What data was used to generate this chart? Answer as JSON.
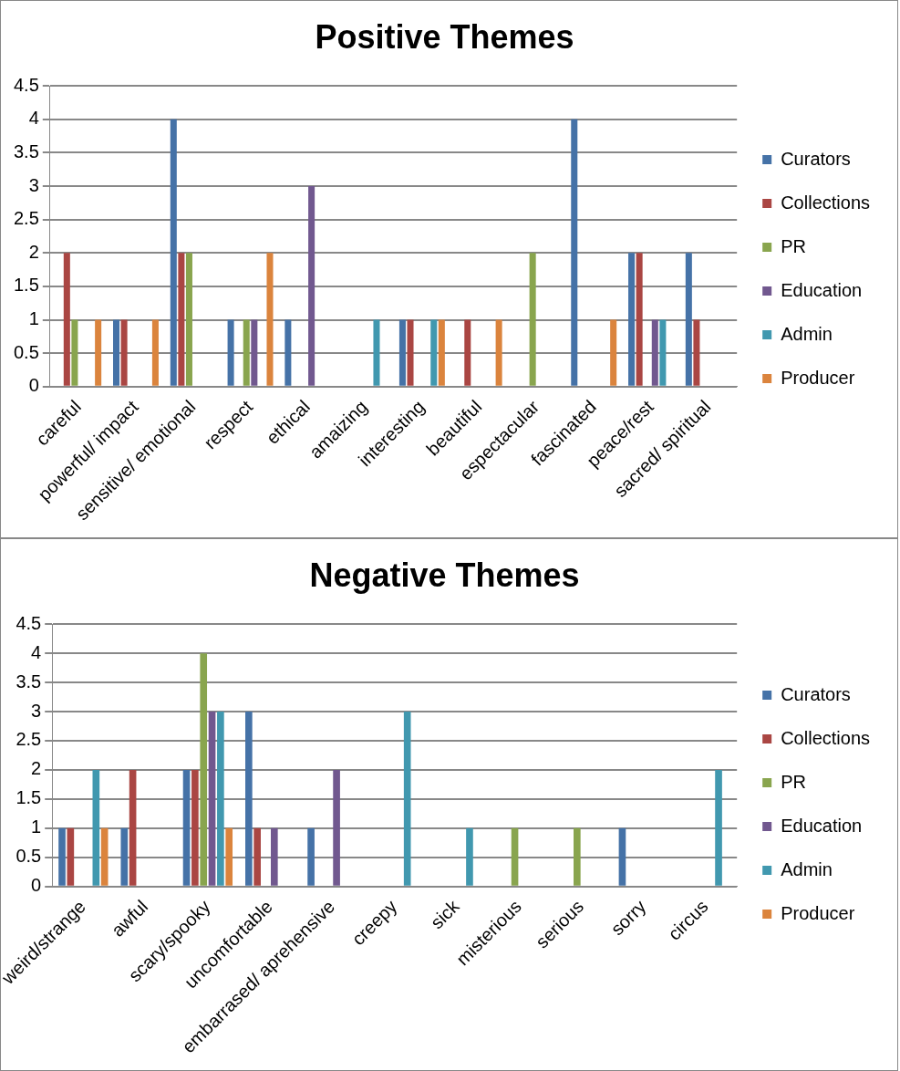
{
  "chart_data": [
    {
      "type": "bar",
      "title": "Positive Themes",
      "categories": [
        "careful",
        "powerful/ impact",
        "sensitive/ emotional",
        "respect",
        "ethical",
        "amaizing",
        "interesting",
        "beautiful",
        "espectacular",
        "fascinated",
        "peace/rest",
        "sacred/ spiritual"
      ],
      "series": [
        {
          "name": "Curators",
          "color": "#4572a7",
          "values": [
            0,
            1,
            4,
            1,
            1,
            0,
            1,
            0,
            0,
            4,
            2,
            2
          ]
        },
        {
          "name": "Collections",
          "color": "#aa4643",
          "values": [
            2,
            1,
            2,
            0,
            0,
            0,
            1,
            1,
            0,
            0,
            2,
            1
          ]
        },
        {
          "name": "PR",
          "color": "#89a54e",
          "values": [
            1,
            0,
            2,
            1,
            0,
            0,
            0,
            0,
            2,
            0,
            0,
            0
          ]
        },
        {
          "name": "Education",
          "color": "#71588f",
          "values": [
            0,
            0,
            0,
            1,
            3,
            0,
            0,
            0,
            0,
            0,
            1,
            0
          ]
        },
        {
          "name": "Admin",
          "color": "#4198af",
          "values": [
            0,
            0,
            0,
            0,
            0,
            1,
            1,
            0,
            0,
            0,
            1,
            0
          ]
        },
        {
          "name": "Producer",
          "color": "#db843d",
          "values": [
            1,
            1,
            0,
            2,
            0,
            0,
            1,
            1,
            0,
            1,
            0,
            0
          ]
        }
      ],
      "ylim": [
        0,
        4.5
      ],
      "yticks": [
        0,
        0.5,
        1,
        1.5,
        2,
        2.5,
        3,
        3.5,
        4,
        4.5
      ],
      "grid": "y",
      "legend": "right"
    },
    {
      "type": "bar",
      "title": "Negative Themes",
      "categories": [
        "weird/strange",
        "awful",
        "scary/spooky",
        "uncomfortable",
        "embarrased/ aprehensive",
        "creepy",
        "sick",
        "misterious",
        "serious",
        "sorry",
        "circus"
      ],
      "series": [
        {
          "name": "Curators",
          "color": "#4572a7",
          "values": [
            1,
            1,
            2,
            3,
            1,
            0,
            0,
            0,
            0,
            1,
            0
          ]
        },
        {
          "name": "Collections",
          "color": "#aa4643",
          "values": [
            1,
            2,
            2,
            1,
            0,
            0,
            0,
            0,
            0,
            0,
            0
          ]
        },
        {
          "name": "PR",
          "color": "#89a54e",
          "values": [
            0,
            0,
            4,
            0,
            0,
            0,
            0,
            1,
            1,
            0,
            0
          ]
        },
        {
          "name": "Education",
          "color": "#71588f",
          "values": [
            0,
            0,
            3,
            1,
            2,
            0,
            0,
            0,
            0,
            0,
            0
          ]
        },
        {
          "name": "Admin",
          "color": "#4198af",
          "values": [
            2,
            0,
            3,
            0,
            0,
            3,
            1,
            0,
            0,
            0,
            2
          ]
        },
        {
          "name": "Producer",
          "color": "#db843d",
          "values": [
            1,
            0,
            1,
            0,
            0,
            0,
            0,
            0,
            0,
            0,
            0
          ]
        }
      ],
      "ylim": [
        0,
        4.5
      ],
      "yticks": [
        0,
        0.5,
        1,
        1.5,
        2,
        2.5,
        3,
        3.5,
        4,
        4.5
      ],
      "grid": "y",
      "legend": "right"
    }
  ]
}
